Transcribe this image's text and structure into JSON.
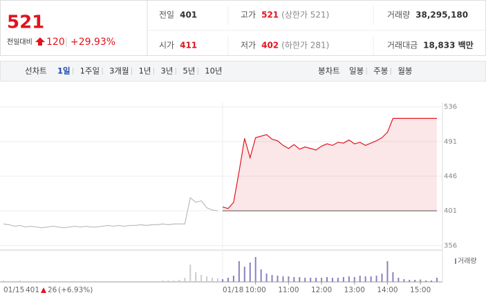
{
  "header": {
    "price": "521",
    "change_label": "전일대비",
    "change": "120",
    "change_rate": "+29.93%",
    "stats": [
      {
        "label": "전일",
        "value": "401"
      },
      {
        "label": "고가",
        "value": "521",
        "note": "(상한가 521)"
      },
      {
        "label": "거래량",
        "value": "38,295,180"
      },
      {
        "label": "시가",
        "value": "411"
      },
      {
        "label": "저가",
        "value": "402",
        "note": "(하한가 281)"
      },
      {
        "label": "거래대금",
        "value": "18,833 백만"
      }
    ]
  },
  "tabs": {
    "line_label": "선차트",
    "line_tabs": [
      "1일",
      "1주일",
      "3개월",
      "1년",
      "3년",
      "5년",
      "10년"
    ],
    "selected_tab": 0,
    "candle_label": "봉차트",
    "candle_tabs": [
      "일봉",
      "주봉",
      "월봉"
    ]
  },
  "footer": {
    "date": "01/15",
    "close": "401",
    "change": "26",
    "rate": "(+6.93%)"
  },
  "chart_data": {
    "type": "line",
    "ylim": [
      350,
      542
    ],
    "yticks": [
      356,
      401,
      446,
      491,
      536
    ],
    "baseline": 401,
    "grid": true,
    "x": [
      "09:00",
      "09:10",
      "09:20",
      "09:30",
      "09:40",
      "09:50",
      "10:00",
      "10:10",
      "10:20",
      "10:30",
      "10:40",
      "10:50",
      "11:00",
      "11:10",
      "11:20",
      "11:30",
      "11:40",
      "11:50",
      "12:00",
      "12:10",
      "12:20",
      "12:30",
      "12:40",
      "12:50",
      "13:00",
      "13:10",
      "13:20",
      "13:30",
      "13:40",
      "13:50",
      "14:00",
      "14:10",
      "14:20",
      "14:30",
      "14:40",
      "14:50",
      "15:00",
      "15:10",
      "15:20",
      "15:30"
    ],
    "xticks": [
      "10:00",
      "11:00",
      "12:00",
      "13:00",
      "14:00",
      "15:00"
    ],
    "series": [
      {
        "name": "01/15",
        "color": "#bbbbbb",
        "values": [
          384,
          383,
          381,
          382,
          380,
          381,
          380,
          379,
          380,
          381,
          380,
          379,
          380,
          381,
          380,
          381,
          380,
          380,
          381,
          382,
          381,
          382,
          381,
          382,
          382,
          383,
          382,
          383,
          383,
          384,
          383,
          384,
          384,
          384,
          418,
          412,
          414,
          405,
          402,
          401
        ]
      },
      {
        "name": "01/18",
        "color": "#e0141e",
        "values": [
          406,
          404,
          412,
          452,
          495,
          470,
          496,
          498,
          500,
          494,
          492,
          486,
          482,
          487,
          481,
          484,
          482,
          480,
          485,
          488,
          486,
          490,
          489,
          493,
          488,
          490,
          486,
          489,
          492,
          496,
          503,
          521,
          521,
          521,
          521,
          521,
          521,
          521,
          521,
          521
        ]
      }
    ],
    "volume": {
      "label": "거래량",
      "color_prev": "#cccccc",
      "color_today": "#8a7fc0",
      "series": [
        [
          2,
          1,
          1,
          2,
          1,
          1,
          1,
          1,
          1,
          1,
          1,
          1,
          1,
          1,
          1,
          1,
          1,
          1,
          1,
          1,
          1,
          1,
          1,
          1,
          1,
          1,
          1,
          1,
          1,
          2,
          2,
          2,
          3,
          6,
          25,
          14,
          10,
          8,
          6,
          5
        ],
        [
          4,
          6,
          9,
          30,
          22,
          28,
          36,
          18,
          12,
          10,
          9,
          8,
          8,
          7,
          7,
          6,
          6,
          6,
          6,
          7,
          6,
          6,
          7,
          8,
          7,
          9,
          8,
          8,
          9,
          12,
          30,
          14,
          6,
          4,
          3,
          3,
          3,
          2,
          2,
          6
        ]
      ]
    }
  }
}
